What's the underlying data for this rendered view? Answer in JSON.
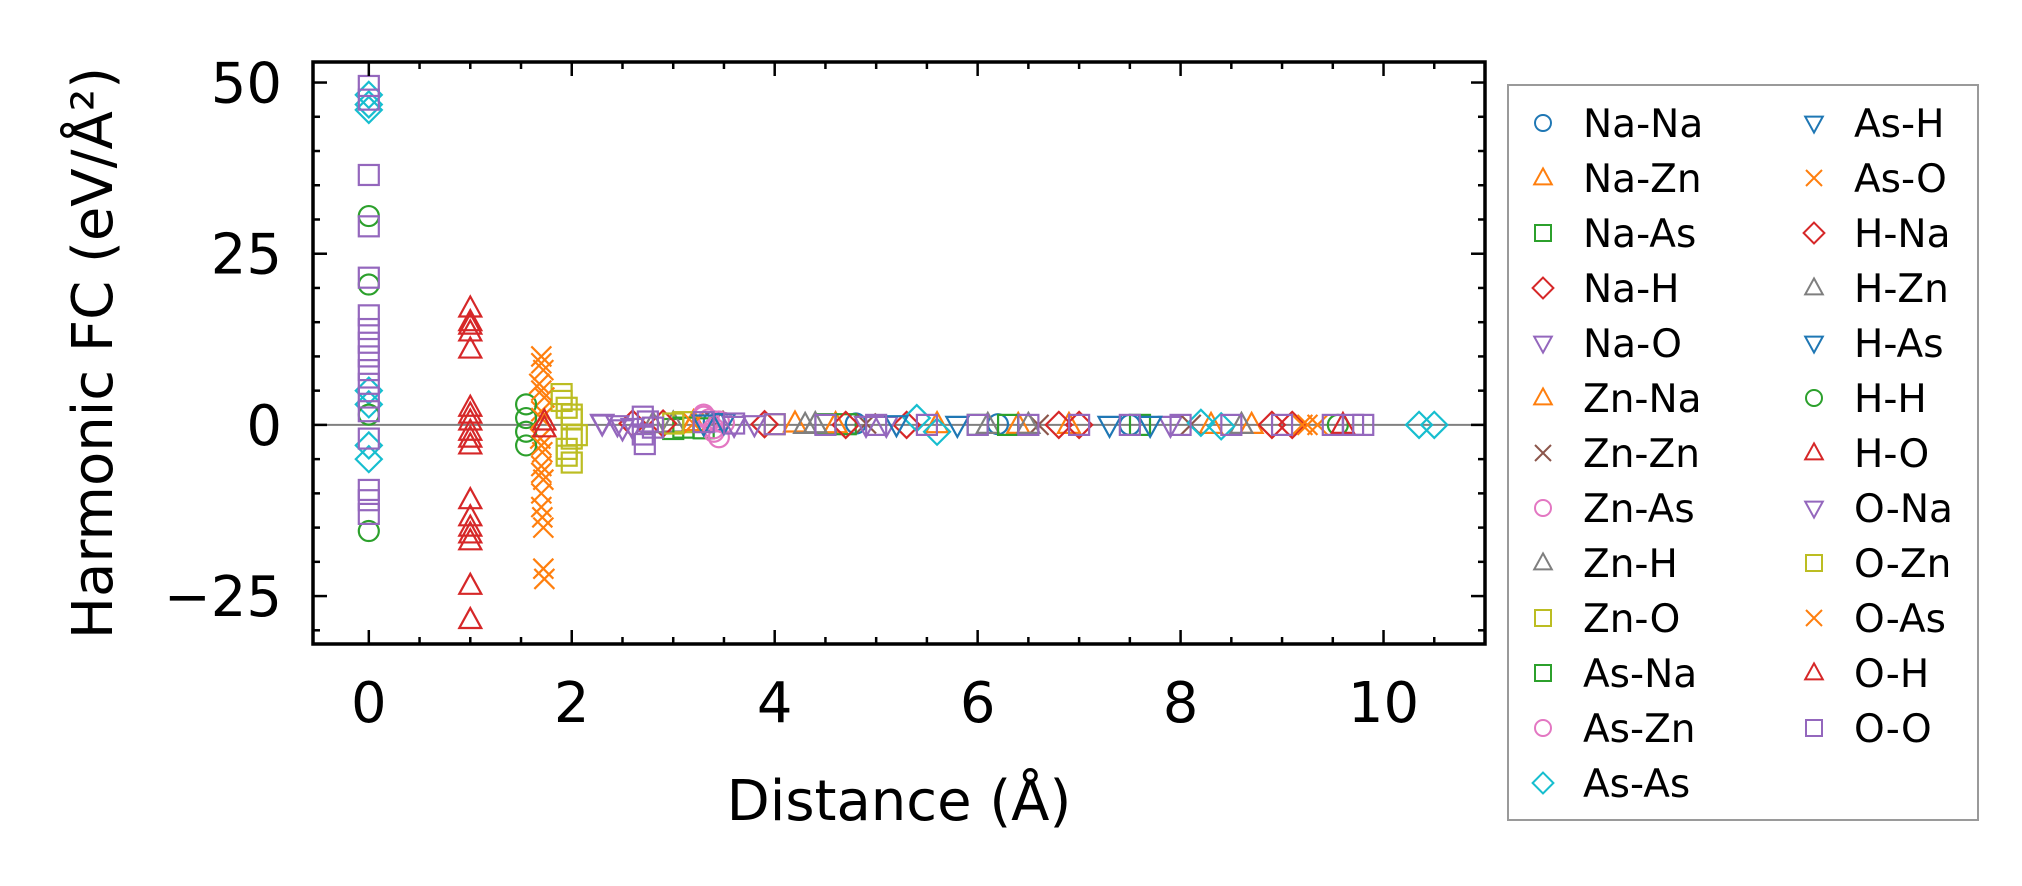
{
  "chart_data": {
    "type": "scatter",
    "title": "",
    "xlabel": "Distance (Å)",
    "ylabel": "Harmonic FC (eV/Å²)",
    "xlim": [
      -0.55,
      11.0
    ],
    "ylim": [
      -32,
      53
    ],
    "xticks": [
      0,
      2,
      4,
      6,
      8,
      10
    ],
    "yticks": [
      -25,
      0,
      25,
      50
    ],
    "xtick_labels": [
      "0",
      "2",
      "4",
      "6",
      "8",
      "10"
    ],
    "ytick_labels": [
      "−25",
      "0",
      "25",
      "50"
    ],
    "zero_line": true,
    "legend_placement": "outside-right",
    "series": [
      {
        "name": "Na-Na",
        "marker": "circle",
        "color": "#1f77b4",
        "points": [
          [
            3.4,
            0.5
          ],
          [
            4.8,
            0.2
          ],
          [
            6.2,
            0.1
          ],
          [
            7.5,
            0.0
          ]
        ]
      },
      {
        "name": "Na-Zn",
        "marker": "triangle-up",
        "color": "#ff7f0e",
        "points": [
          [
            3.2,
            0.4
          ],
          [
            4.2,
            0.2
          ],
          [
            5.6,
            0.1
          ],
          [
            6.9,
            0.0
          ],
          [
            8.3,
            0.0
          ]
        ]
      },
      {
        "name": "Na-As",
        "marker": "square",
        "color": "#2ca02c",
        "points": [
          [
            3.0,
            -0.6
          ],
          [
            3.3,
            -0.5
          ],
          [
            4.5,
            0.1
          ],
          [
            6.0,
            0.0
          ],
          [
            7.6,
            0.0
          ]
        ]
      },
      {
        "name": "Na-H",
        "marker": "diamond",
        "color": "#d62728",
        "points": [
          [
            2.6,
            0.2
          ],
          [
            3.9,
            0.1
          ],
          [
            5.3,
            0.0
          ],
          [
            7.0,
            0.0
          ],
          [
            9.1,
            0.0
          ]
        ]
      },
      {
        "name": "Na-O",
        "marker": "triangle-down",
        "color": "#9467bd",
        "points": [
          [
            2.3,
            0.3
          ],
          [
            2.5,
            -0.5
          ],
          [
            3.8,
            0.1
          ],
          [
            5.1,
            0.0
          ],
          [
            7.9,
            0.0
          ]
        ]
      },
      {
        "name": "Zn-Na",
        "marker": "triangle-up",
        "color": "#ff7f0e",
        "points": [
          [
            3.2,
            0.3
          ],
          [
            4.6,
            0.1
          ],
          [
            6.4,
            0.0
          ],
          [
            8.7,
            0.0
          ]
        ]
      },
      {
        "name": "Zn-Zn",
        "marker": "x",
        "color": "#8c564b",
        "points": [
          [
            3.4,
            0.6
          ],
          [
            4.9,
            0.2
          ],
          [
            6.6,
            0.0
          ],
          [
            8.1,
            0.0
          ]
        ]
      },
      {
        "name": "Zn-As",
        "marker": "circle",
        "color": "#e377c2",
        "points": [
          [
            3.3,
            1.5
          ],
          [
            3.35,
            0.8
          ],
          [
            3.4,
            -0.5
          ],
          [
            3.45,
            -1.8
          ],
          [
            3.5,
            0.3
          ]
        ]
      },
      {
        "name": "Zn-H",
        "marker": "triangle-up",
        "color": "#7f7f7f",
        "points": [
          [
            3.0,
            0.2
          ],
          [
            4.4,
            0.1
          ],
          [
            6.1,
            0.0
          ],
          [
            8.6,
            0.0
          ]
        ]
      },
      {
        "name": "Zn-O",
        "marker": "square",
        "color": "#bcbd22",
        "points": [
          [
            1.9,
            4.5
          ],
          [
            1.95,
            2.5
          ],
          [
            2.0,
            0.8
          ],
          [
            2.05,
            -1.5
          ],
          [
            1.95,
            -3.5
          ],
          [
            2.0,
            -5.5
          ],
          [
            3.1,
            0.4
          ],
          [
            4.0,
            0.1
          ]
        ]
      },
      {
        "name": "As-Na",
        "marker": "square",
        "color": "#2ca02c",
        "points": [
          [
            3.1,
            -0.4
          ],
          [
            4.7,
            0.1
          ],
          [
            6.3,
            0.0
          ]
        ]
      },
      {
        "name": "As-Zn",
        "marker": "circle",
        "color": "#e377c2",
        "points": [
          [
            3.3,
            1.2
          ],
          [
            3.4,
            -1.0
          ],
          [
            3.45,
            0.5
          ]
        ]
      },
      {
        "name": "As-As",
        "marker": "diamond",
        "color": "#17becf",
        "points": [
          [
            0.0,
            48.2
          ],
          [
            0.0,
            46.8
          ],
          [
            0.0,
            46.0
          ],
          [
            0.0,
            5.0
          ],
          [
            0.0,
            3.0
          ],
          [
            0.0,
            -3.0
          ],
          [
            0.0,
            -5.0
          ],
          [
            5.4,
            1.0
          ],
          [
            5.6,
            -1.0
          ],
          [
            8.2,
            0.3
          ],
          [
            8.4,
            -0.2
          ],
          [
            10.35,
            0.0
          ],
          [
            10.5,
            0.0
          ]
        ]
      },
      {
        "name": "As-H",
        "marker": "triangle-down",
        "color": "#1f77b4",
        "points": [
          [
            3.5,
            0.4
          ],
          [
            5.2,
            0.1
          ],
          [
            7.3,
            0.0
          ]
        ]
      },
      {
        "name": "As-O",
        "marker": "x",
        "color": "#ff7f0e",
        "points": [
          [
            1.7,
            10.0
          ],
          [
            1.72,
            8.0
          ],
          [
            1.68,
            6.0
          ],
          [
            1.73,
            4.0
          ],
          [
            1.7,
            2.0
          ],
          [
            1.69,
            -2.0
          ],
          [
            1.71,
            -4.0
          ],
          [
            1.7,
            -6.0
          ],
          [
            1.72,
            -8.0
          ],
          [
            1.7,
            -10.0
          ],
          [
            1.71,
            -13.5
          ],
          [
            1.72,
            -15.0
          ],
          [
            1.72,
            -21.0
          ],
          [
            1.73,
            -22.5
          ],
          [
            3.2,
            0.2
          ],
          [
            9.2,
            0.0
          ],
          [
            9.35,
            0.0
          ]
        ]
      },
      {
        "name": "H-Na",
        "marker": "diamond",
        "color": "#d62728",
        "points": [
          [
            2.9,
            0.2
          ],
          [
            4.7,
            0.0
          ],
          [
            6.8,
            0.0
          ],
          [
            8.9,
            0.0
          ]
        ]
      },
      {
        "name": "H-Zn",
        "marker": "triangle-up",
        "color": "#7f7f7f",
        "points": [
          [
            2.8,
            0.1
          ],
          [
            4.3,
            0.0
          ],
          [
            6.5,
            0.0
          ]
        ]
      },
      {
        "name": "H-As",
        "marker": "triangle-down",
        "color": "#1f77b4",
        "points": [
          [
            3.3,
            0.2
          ],
          [
            5.8,
            0.0
          ],
          [
            7.7,
            0.0
          ]
        ]
      },
      {
        "name": "H-H",
        "marker": "circle",
        "color": "#2ca02c",
        "points": [
          [
            0.0,
            30.5
          ],
          [
            0.0,
            20.5
          ],
          [
            0.0,
            1.5
          ],
          [
            0.0,
            -15.5
          ],
          [
            1.55,
            3.0
          ],
          [
            1.55,
            1.0
          ],
          [
            1.55,
            -1.0
          ],
          [
            1.55,
            -3.0
          ],
          [
            9.55,
            0.0
          ]
        ]
      },
      {
        "name": "H-O",
        "marker": "triangle-up",
        "color": "#d62728",
        "points": [
          [
            1.0,
            17.0
          ],
          [
            1.0,
            14.5
          ],
          [
            1.0,
            13.5
          ],
          [
            1.0,
            11.0
          ],
          [
            1.0,
            2.5
          ],
          [
            1.0,
            1.5
          ],
          [
            1.0,
            -2.0
          ],
          [
            1.0,
            -3.0
          ],
          [
            1.0,
            -11.0
          ],
          [
            1.0,
            -13.5
          ],
          [
            1.0,
            -15.0
          ],
          [
            1.0,
            -17.0
          ],
          [
            1.0,
            -23.5
          ],
          [
            1.0,
            -28.5
          ],
          [
            9.6,
            0.0
          ]
        ]
      },
      {
        "name": "O-Na",
        "marker": "triangle-down",
        "color": "#9467bd",
        "points": [
          [
            2.3,
            0.2
          ],
          [
            2.45,
            0.1
          ],
          [
            2.6,
            -0.3
          ],
          [
            3.6,
            0.0
          ],
          [
            4.9,
            0.0
          ]
        ]
      },
      {
        "name": "O-Zn",
        "marker": "square",
        "color": "#bcbd22",
        "points": [
          [
            1.9,
            3.5
          ],
          [
            2.0,
            1.5
          ],
          [
            2.0,
            -2.0
          ],
          [
            1.95,
            -4.5
          ],
          [
            3.0,
            0.2
          ]
        ]
      },
      {
        "name": "O-As",
        "marker": "x",
        "color": "#ff7f0e",
        "points": [
          [
            1.7,
            9.0
          ],
          [
            1.7,
            5.0
          ],
          [
            1.7,
            1.0
          ],
          [
            1.7,
            -3.0
          ],
          [
            1.7,
            -7.0
          ],
          [
            1.7,
            -12.0
          ],
          [
            9.25,
            0.0
          ]
        ]
      },
      {
        "name": "O-H",
        "marker": "triangle-up",
        "color": "#d62728",
        "points": [
          [
            1.0,
            15.0
          ],
          [
            1.0,
            0.5
          ],
          [
            1.0,
            -1.0
          ],
          [
            1.0,
            -16.0
          ],
          [
            1.73,
            0.5
          ],
          [
            1.73,
            -0.5
          ]
        ]
      },
      {
        "name": "O-O",
        "marker": "square",
        "color": "#9467bd",
        "points": [
          [
            0.0,
            49.5
          ],
          [
            0.0,
            47.5
          ],
          [
            0.0,
            36.5
          ],
          [
            0.0,
            29.0
          ],
          [
            0.0,
            21.5
          ],
          [
            0.0,
            16.0
          ],
          [
            0.0,
            14.0
          ],
          [
            0.0,
            12.0
          ],
          [
            0.0,
            10.0
          ],
          [
            0.0,
            8.0
          ],
          [
            0.0,
            6.0
          ],
          [
            0.0,
            4.0
          ],
          [
            0.0,
            2.0
          ],
          [
            0.0,
            -2.0
          ],
          [
            0.0,
            -9.5
          ],
          [
            0.0,
            -11.0
          ],
          [
            0.0,
            -13.0
          ],
          [
            2.7,
            1.2
          ],
          [
            2.7,
            -1.4
          ],
          [
            2.75,
            0.5
          ],
          [
            2.8,
            -0.4
          ],
          [
            2.72,
            -2.8
          ],
          [
            3.3,
            0.4
          ],
          [
            3.6,
            0.2
          ],
          [
            4.0,
            0.1
          ],
          [
            4.5,
            0.0
          ],
          [
            5.0,
            0.0
          ],
          [
            5.5,
            0.0
          ],
          [
            6.0,
            0.0
          ],
          [
            6.5,
            0.0
          ],
          [
            7.0,
            0.0
          ],
          [
            7.5,
            0.0
          ],
          [
            8.0,
            0.0
          ],
          [
            8.5,
            0.0
          ],
          [
            9.0,
            0.0
          ],
          [
            9.5,
            0.0
          ],
          [
            9.7,
            0.0
          ],
          [
            9.8,
            0.0
          ]
        ]
      }
    ]
  }
}
